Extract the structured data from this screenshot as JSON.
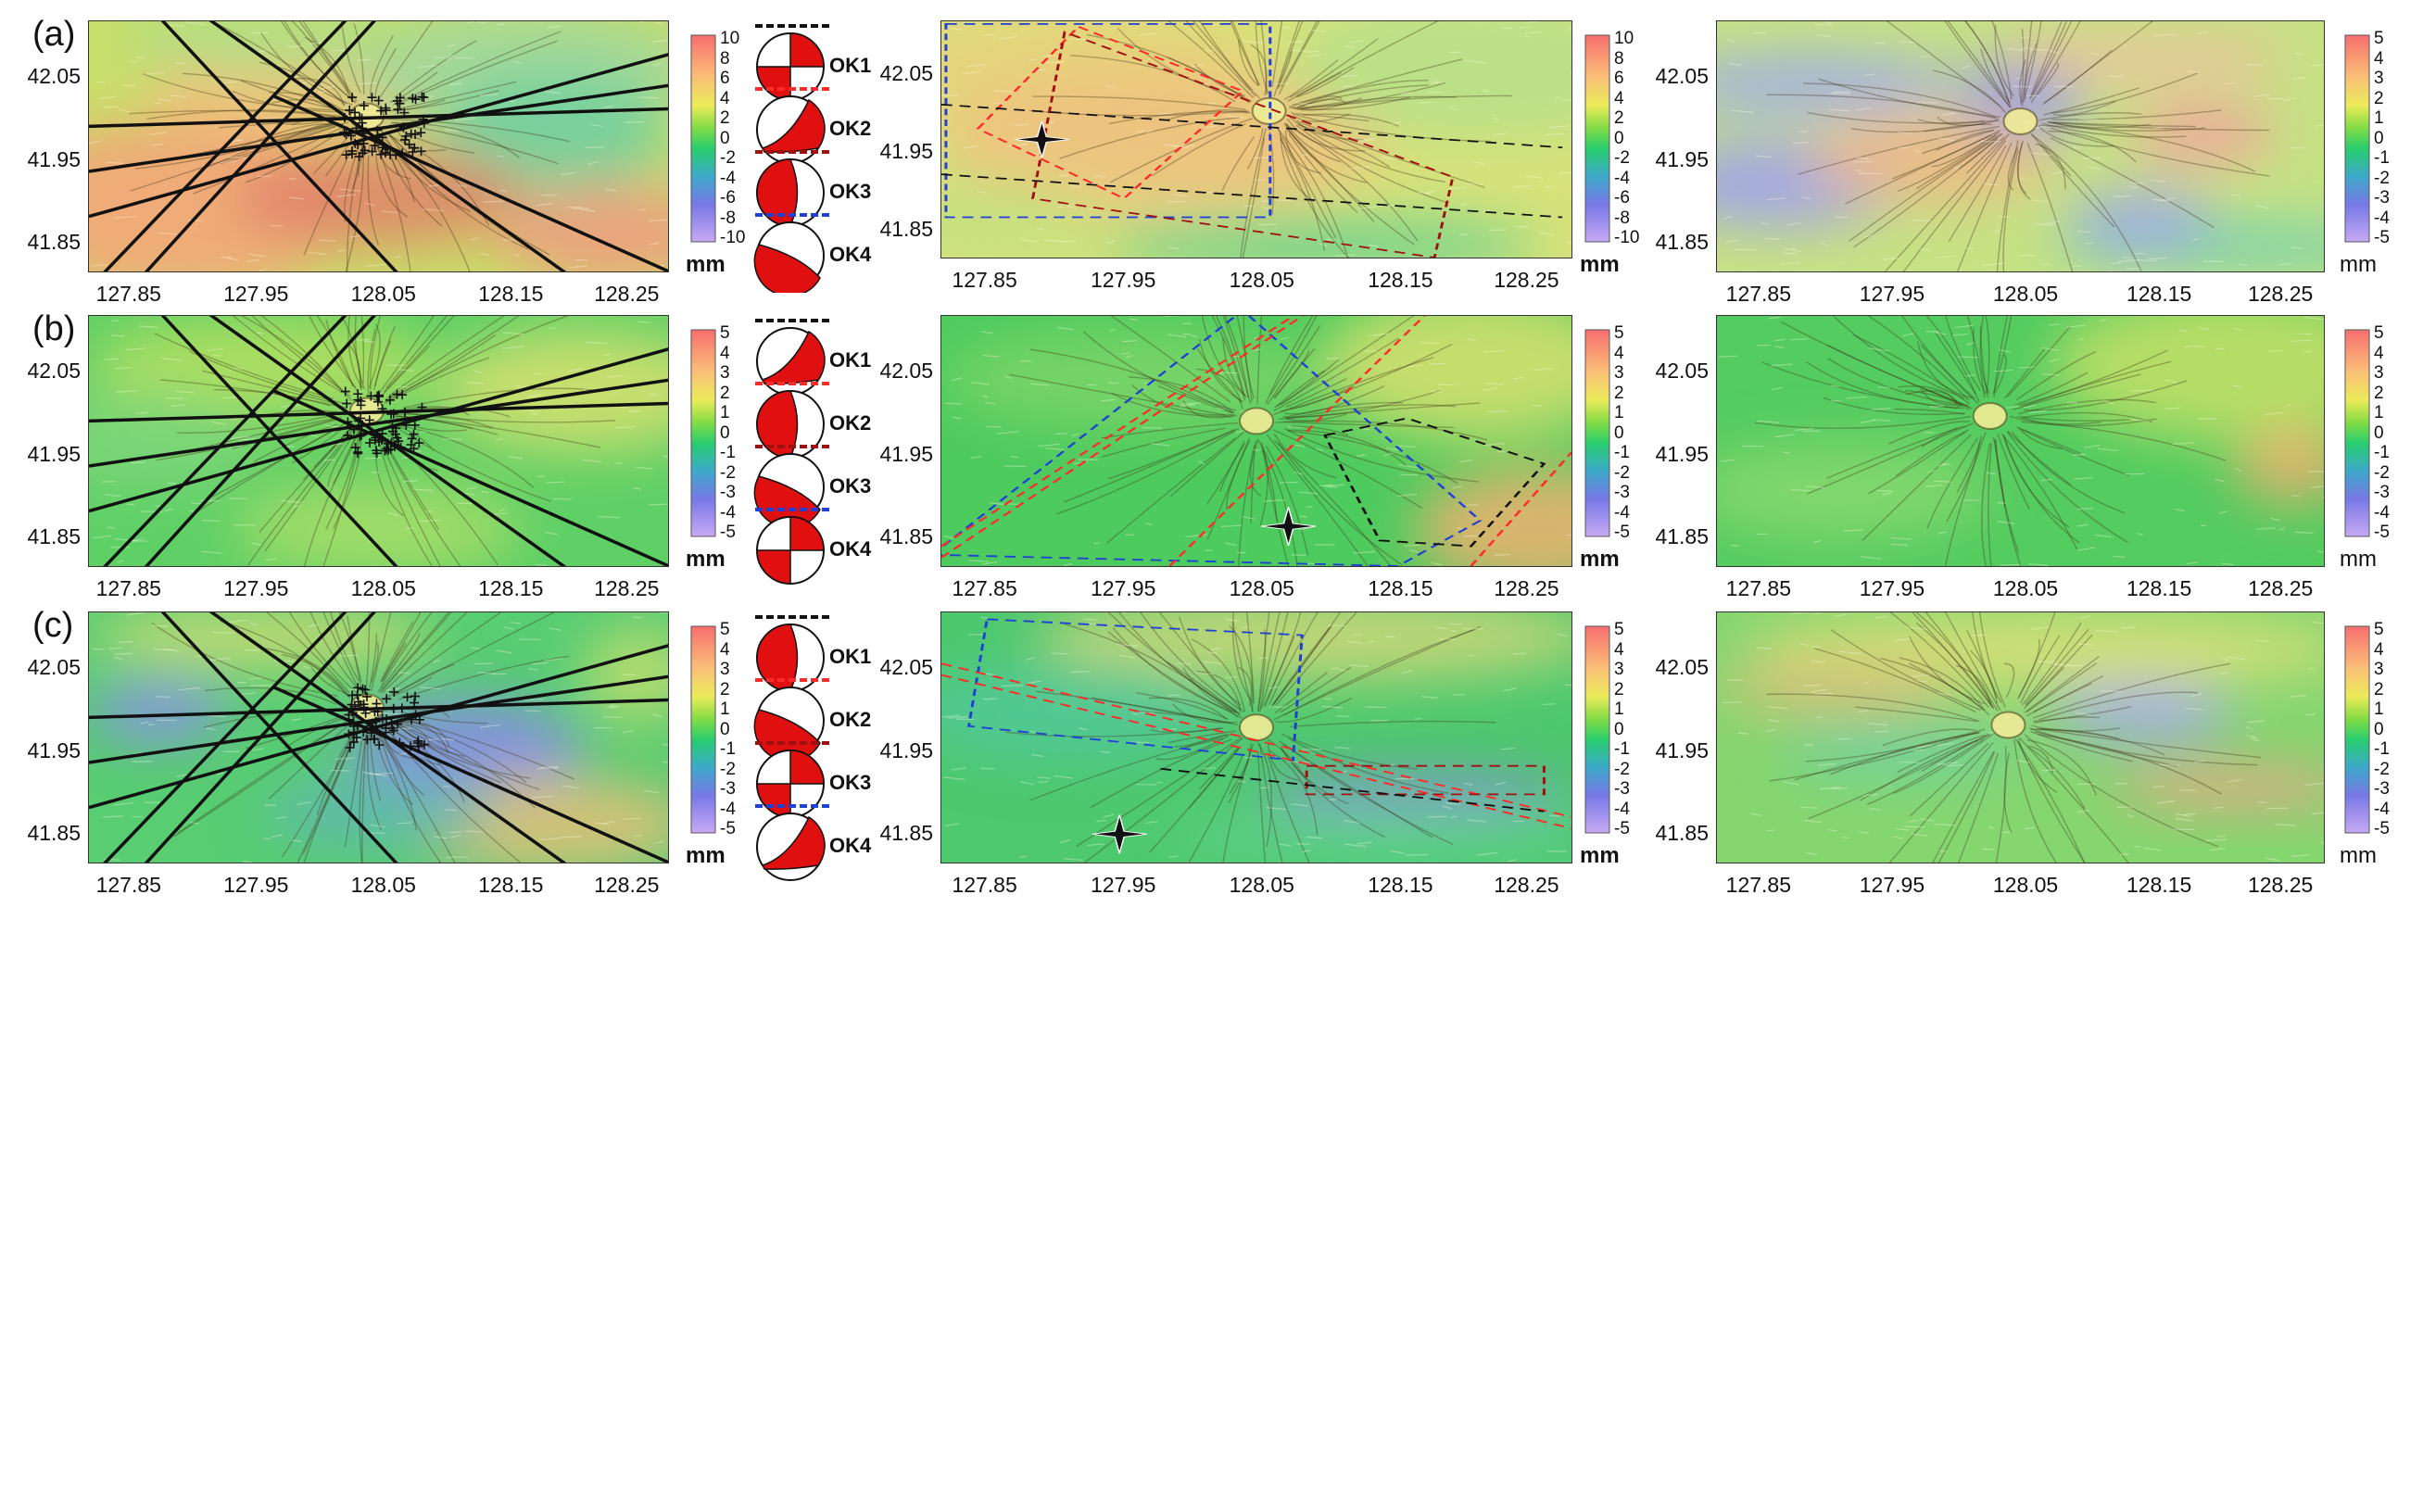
{
  "rows": [
    {
      "label": "(a)",
      "lon_ticks": [
        "127.85",
        "127.95",
        "128.05",
        "128.15",
        "128.25"
      ],
      "lat_ticks": [
        "42.05",
        "41.95",
        "41.85"
      ],
      "cbar_left": [
        "10",
        "8",
        "6",
        "4",
        "2",
        "0",
        "-2",
        "-4",
        "-6",
        "-8",
        "-10"
      ],
      "cbar_mid": [
        "10",
        "8",
        "6",
        "4",
        "2",
        "0",
        "-2",
        "-4",
        "-6",
        "-8",
        "-10"
      ],
      "cbar_right": [
        "5",
        "4",
        "3",
        "2",
        "1",
        "0",
        "-1",
        "-2",
        "-3",
        "-4",
        "-5"
      ],
      "unit": "mm",
      "mechanisms": [
        "OK1",
        "OK2",
        "OK3",
        "OK4"
      ]
    },
    {
      "label": "(b)",
      "lon_ticks": [
        "127.85",
        "127.95",
        "128.05",
        "128.15",
        "128.25"
      ],
      "lat_ticks": [
        "42.05",
        "41.95",
        "41.85"
      ],
      "cbar_left": [
        "5",
        "4",
        "3",
        "2",
        "1",
        "0",
        "-1",
        "-2",
        "-3",
        "-4",
        "-5"
      ],
      "cbar_mid": [
        "5",
        "4",
        "3",
        "2",
        "1",
        "0",
        "-1",
        "-2",
        "-3",
        "-4",
        "-5"
      ],
      "cbar_right": [
        "5",
        "4",
        "3",
        "2",
        "1",
        "0",
        "-1",
        "-2",
        "-3",
        "-4",
        "-5"
      ],
      "unit": "mm",
      "mechanisms": [
        "OK1",
        "OK2",
        "OK3",
        "OK4"
      ]
    },
    {
      "label": "(c)",
      "lon_ticks": [
        "127.85",
        "127.95",
        "128.05",
        "128.15",
        "128.25"
      ],
      "lat_ticks": [
        "42.05",
        "41.95",
        "41.85"
      ],
      "cbar_left": [
        "5",
        "4",
        "3",
        "2",
        "1",
        "0",
        "-1",
        "-2",
        "-3",
        "-4",
        "-5"
      ],
      "cbar_mid": [
        "5",
        "4",
        "3",
        "2",
        "1",
        "0",
        "-1",
        "-2",
        "-3",
        "-4",
        "-5"
      ],
      "cbar_right": [
        "5",
        "4",
        "3",
        "2",
        "1",
        "0",
        "-1",
        "-2",
        "-3",
        "-4",
        "-5"
      ],
      "unit": "mm",
      "mechanisms": [
        "OK1",
        "OK2",
        "OK3",
        "OK4"
      ]
    }
  ],
  "colors": {
    "dash_ok1": "#111111",
    "dash_ok2": "#ff2a2a",
    "dash_ok3": "#a01010",
    "dash_ok4": "#1f3fd6",
    "beachball_fill": "#e01010"
  }
}
